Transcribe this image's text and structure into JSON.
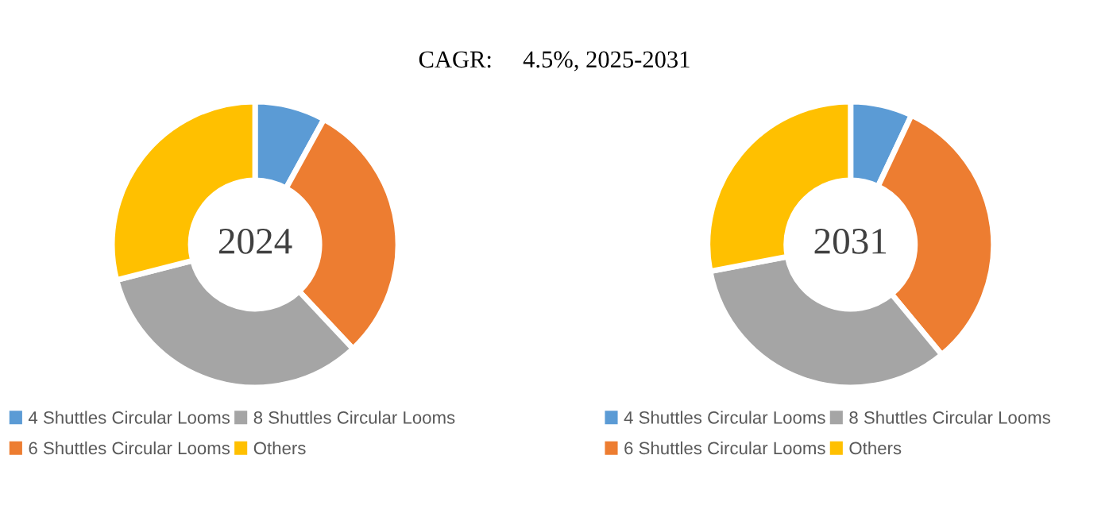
{
  "chart_data": [
    {
      "type": "donut",
      "title": "CAGR:     4.5%, 2025-2031",
      "annotations": [
        "2024"
      ],
      "categories": [
        "4 Shuttles Circular Looms",
        "6 Shuttles Circular Looms",
        "8 Shuttles Circular Looms",
        "Others"
      ],
      "values": [
        8,
        30,
        33,
        29
      ],
      "colors": [
        "#5b9bd5",
        "#ed7d31",
        "#a5a5a5",
        "#ffc000"
      ],
      "legend": "bottom"
    },
    {
      "type": "donut",
      "annotations": [
        "2031"
      ],
      "categories": [
        "4 Shuttles Circular Looms",
        "6 Shuttles Circular Looms",
        "8 Shuttles Circular Looms",
        "Others"
      ],
      "values": [
        7,
        32,
        33,
        28
      ],
      "colors": [
        "#5b9bd5",
        "#ed7d31",
        "#a5a5a5",
        "#ffc000"
      ],
      "legend": "bottom"
    }
  ]
}
